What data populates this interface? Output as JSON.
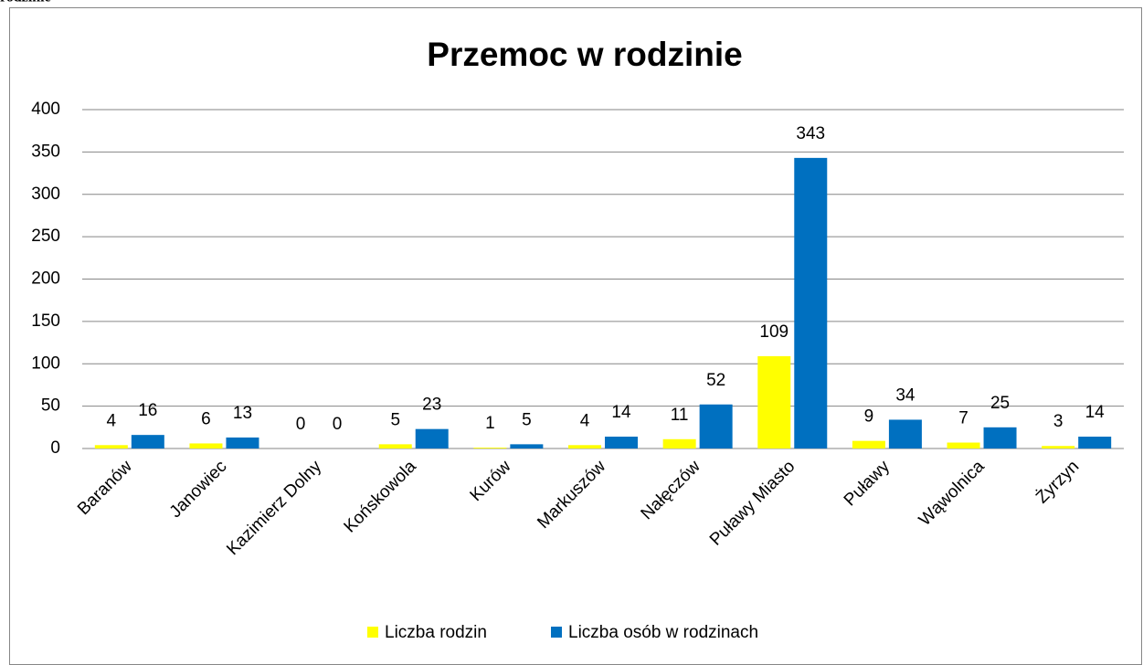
{
  "caption": "rodzinie",
  "chart_data": {
    "type": "bar",
    "title": "Przemoc w rodzinie",
    "categories": [
      "Baranów",
      "Janowiec",
      "Kazimierz Dolny",
      "Końskowola",
      "Kurów",
      "Markuszów",
      "Nałęczów",
      "Puławy Miasto",
      "Puławy",
      "Wąwolnica",
      "Żyrzyn"
    ],
    "series": [
      {
        "name": "Liczba rodzin",
        "color": "#ffff00",
        "values": [
          4,
          6,
          0,
          5,
          1,
          4,
          11,
          109,
          9,
          7,
          3
        ]
      },
      {
        "name": "Liczba osób w rodzinach",
        "color": "#0070c0",
        "values": [
          16,
          13,
          0,
          23,
          5,
          14,
          52,
          343,
          34,
          25,
          14
        ]
      }
    ],
    "ylim": [
      0,
      400
    ],
    "yticks": [
      0,
      50,
      100,
      150,
      200,
      250,
      300,
      350,
      400
    ],
    "grid": true,
    "legend": "bottom"
  }
}
